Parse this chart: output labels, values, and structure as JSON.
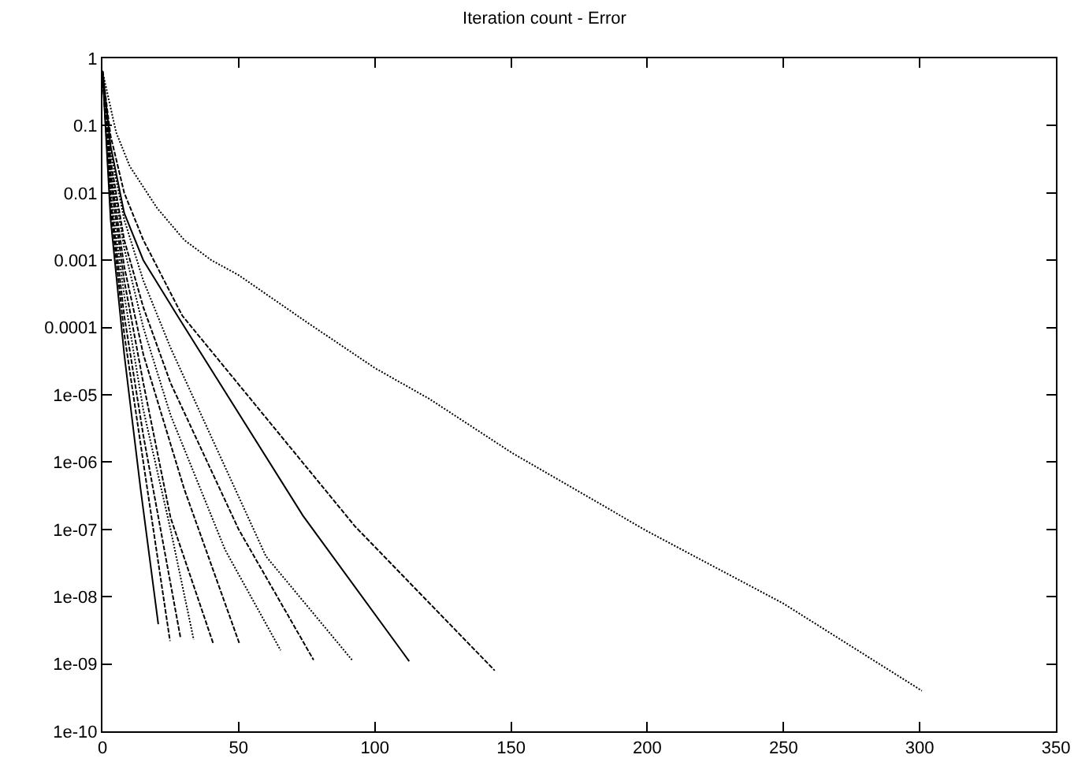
{
  "chart_data": {
    "type": "line",
    "title": "Iteration count - Error",
    "log": "y",
    "marker": "none",
    "xlim": [
      0,
      350
    ],
    "xticks": [
      0,
      50,
      100,
      150,
      200,
      250,
      300,
      350
    ],
    "ylim": [
      1e-10,
      1
    ],
    "yticks": [
      1,
      0.1,
      0.01,
      0.001,
      0.0001,
      {
        "value": 1e-05,
        "label": "1e-05"
      },
      {
        "value": 1e-06,
        "label": "1e-06"
      },
      {
        "value": 1e-07,
        "label": "1e-07"
      },
      {
        "value": 1e-08,
        "label": "1e-08"
      },
      {
        "value": 1e-09,
        "label": "1e-09"
      },
      {
        "value": 1e-10,
        "label": "1e-10"
      }
    ],
    "series": [
      {
        "color": "#000000",
        "line_style": "solid",
        "x": [
          0,
          3,
          8,
          14,
          20.5
        ],
        "values": [
          0.65,
          0.004,
          4e-05,
          4e-07,
          3.9e-09
        ]
      },
      {
        "color": "#000000",
        "line_style": "dashed",
        "x": [
          0,
          3,
          8,
          15,
          24.8
        ],
        "values": [
          0.65,
          0.006,
          8e-05,
          1e-06,
          2.2e-09
        ]
      },
      {
        "color": "#000000",
        "line_style": "dashed",
        "x": [
          0,
          3,
          8,
          15,
          28.7
        ],
        "values": [
          0.65,
          0.008,
          0.00015,
          2.5e-06,
          2.4e-09
        ]
      },
      {
        "color": "#000000",
        "line_style": "dotted",
        "x": [
          0,
          3,
          8,
          15,
          25,
          33.5
        ],
        "values": [
          0.65,
          0.01,
          0.0003,
          6e-06,
          1e-07,
          2.3e-09
        ]
      },
      {
        "color": "#000000",
        "line_style": "dashed",
        "x": [
          0,
          3,
          8,
          15,
          25,
          40.7
        ],
        "values": [
          0.65,
          0.015,
          0.0005,
          1.5e-05,
          1.5e-07,
          2e-09
        ]
      },
      {
        "color": "#000000",
        "line_style": "dashed",
        "x": [
          0,
          3,
          8,
          15,
          30,
          50.3
        ],
        "values": [
          0.65,
          0.02,
          0.0008,
          4e-05,
          4e-07,
          2e-09
        ]
      },
      {
        "color": "#000000",
        "line_style": "dotted",
        "x": [
          0,
          3,
          8,
          15,
          25,
          45,
          65.4
        ],
        "values": [
          0.65,
          0.025,
          0.0015,
          0.0001,
          5e-06,
          5e-08,
          1.6e-09
        ]
      },
      {
        "color": "#000000",
        "line_style": "dashed",
        "x": [
          0,
          3,
          8,
          15,
          25,
          50,
          77.5
        ],
        "values": [
          0.65,
          0.03,
          0.002,
          0.0002,
          1.5e-05,
          1e-07,
          1.15e-09
        ]
      },
      {
        "color": "#000000",
        "line_style": "dotted",
        "x": [
          0,
          3,
          8,
          15,
          25,
          60,
          91.6
        ],
        "values": [
          0.65,
          0.04,
          0.004,
          0.0005,
          5e-05,
          4e-08,
          1.15e-09
        ]
      },
      {
        "color": "#000000",
        "line_style": "solid",
        "x": [
          0,
          3,
          8,
          15,
          27.5,
          73.6,
          112.6
        ],
        "values": [
          0.65,
          0.05,
          0.005,
          0.001,
          0.00015,
          1.6e-07,
          1.1e-09
        ]
      },
      {
        "color": "#000000",
        "line_style": "dashed",
        "x": [
          0,
          3,
          8,
          15,
          29.3,
          92.8,
          144
        ],
        "values": [
          0.65,
          0.07,
          0.01,
          0.002,
          0.00015,
          1.1e-07,
          8e-10
        ]
      },
      {
        "color": "#000000",
        "line_style": "dotted",
        "x": [
          0,
          5,
          10,
          20,
          30,
          40,
          50,
          75,
          100,
          120,
          150,
          200,
          250,
          300.8
        ],
        "values": [
          0.65,
          0.08,
          0.025,
          0.006,
          0.002,
          0.001,
          0.0006,
          0.00012,
          2.5e-05,
          8.7e-06,
          1.4e-06,
          9.4e-08,
          7.9e-09,
          4e-10
        ]
      }
    ]
  }
}
